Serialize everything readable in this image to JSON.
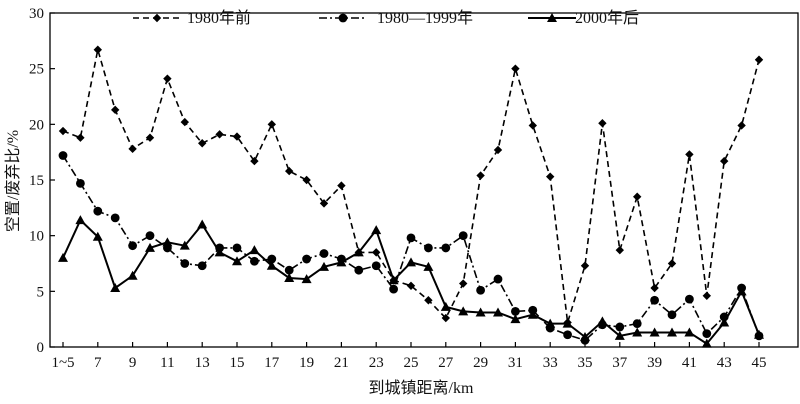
{
  "chart_data": {
    "type": "line",
    "xlabel": "到城镇距离/km",
    "ylabel": "空置/废弃比/%",
    "ylim": [
      0,
      30
    ],
    "yticks": [
      0,
      5,
      10,
      15,
      20,
      25,
      30
    ],
    "x": [
      "1~5",
      6,
      7,
      8,
      9,
      10,
      11,
      12,
      13,
      14,
      15,
      16,
      17,
      18,
      19,
      20,
      21,
      22,
      23,
      24,
      25,
      26,
      27,
      28,
      29,
      30,
      31,
      32,
      33,
      34,
      35,
      36,
      37,
      38,
      39,
      40,
      41,
      42,
      43,
      44,
      45
    ],
    "xtick_labels": [
      "1~5",
      "7",
      "9",
      "11",
      "13",
      "15",
      "17",
      "19",
      "21",
      "23",
      "25",
      "27",
      "29",
      "31",
      "33",
      "35",
      "37",
      "39",
      "41",
      "43",
      "45"
    ],
    "grid": false,
    "legend_position": "top",
    "series": [
      {
        "name": "1980年前",
        "style": "dashed-diamond",
        "values": [
          19.4,
          18.8,
          26.7,
          21.3,
          17.8,
          18.8,
          24.1,
          20.2,
          18.3,
          19.1,
          18.9,
          16.7,
          20.0,
          15.8,
          15.0,
          12.9,
          14.5,
          8.5,
          8.5,
          6.0,
          5.5,
          4.2,
          2.6,
          5.7,
          15.4,
          17.7,
          25.0,
          19.9,
          15.3,
          2.2,
          7.3,
          20.1,
          8.7,
          13.5,
          5.3,
          7.5,
          17.3,
          4.6,
          16.7,
          19.9,
          25.8
        ]
      },
      {
        "name": "1980—1999年",
        "style": "dashdot-circle",
        "values": [
          17.2,
          14.7,
          12.2,
          11.6,
          9.1,
          10.0,
          8.9,
          7.5,
          7.3,
          8.9,
          8.9,
          7.7,
          7.9,
          6.9,
          7.9,
          8.4,
          7.9,
          6.9,
          7.3,
          5.2,
          9.8,
          8.9,
          8.9,
          10.0,
          5.1,
          6.1,
          3.2,
          3.3,
          1.7,
          1.1,
          0.6,
          2.0,
          1.8,
          2.1,
          4.2,
          2.9,
          4.3,
          1.2,
          2.7,
          5.3,
          1.0
        ]
      },
      {
        "name": "2000年后",
        "style": "solid-triangle",
        "values": [
          8.0,
          11.4,
          9.9,
          5.3,
          6.4,
          8.9,
          9.4,
          9.1,
          11.0,
          8.5,
          7.7,
          8.7,
          7.3,
          6.2,
          6.1,
          7.2,
          7.6,
          8.5,
          10.5,
          6.0,
          7.6,
          7.2,
          3.6,
          3.2,
          3.1,
          3.1,
          2.5,
          2.9,
          2.1,
          2.1,
          0.9,
          2.3,
          1.0,
          1.3,
          1.3,
          1.3,
          1.3,
          0.3,
          2.2,
          5.0,
          1.1
        ]
      }
    ]
  }
}
